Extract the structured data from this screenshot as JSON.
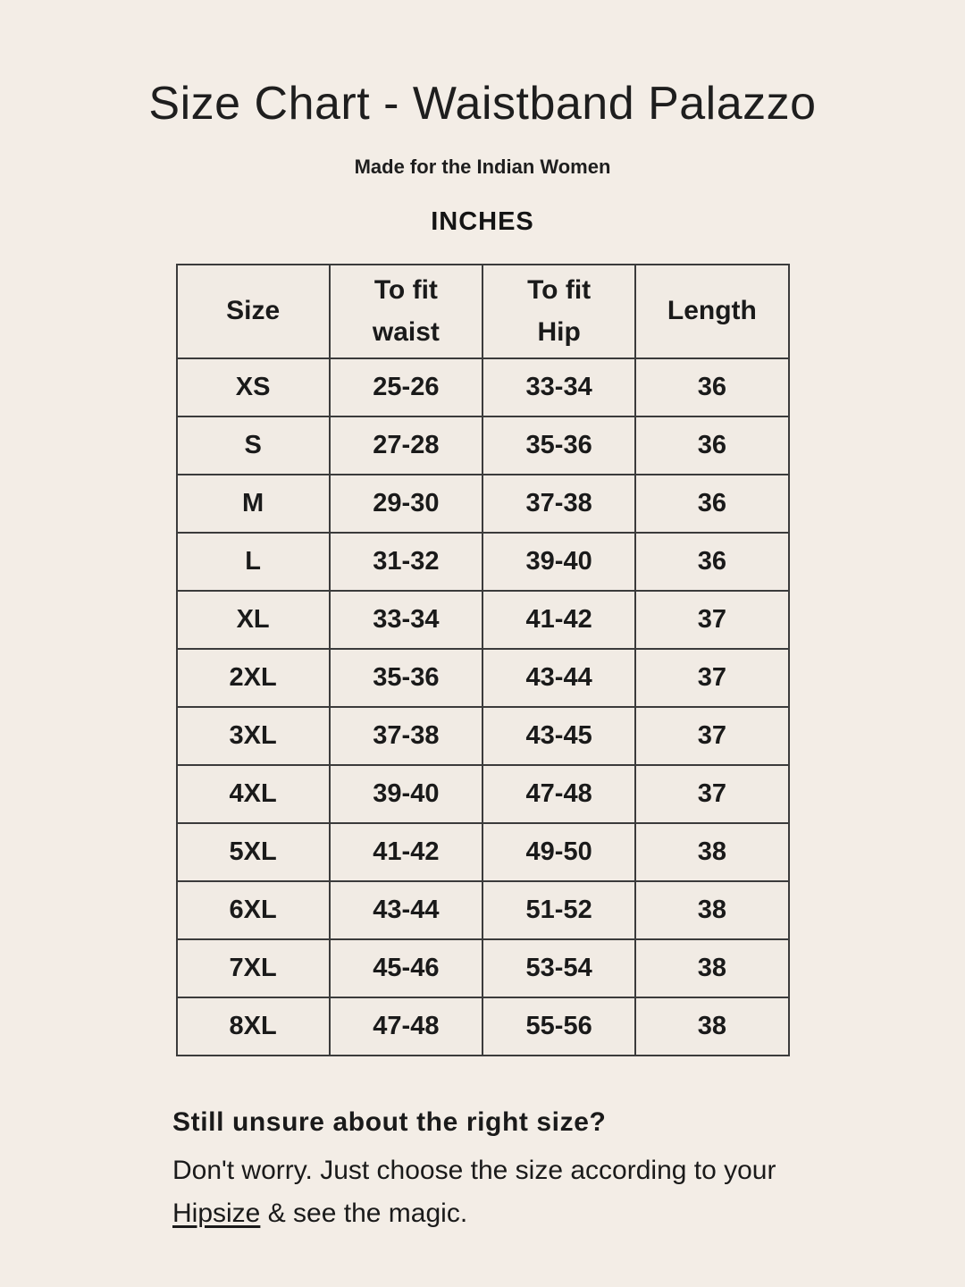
{
  "page": {
    "title": "Size Chart - Waistband Palazzo",
    "subtitle": "Made for the Indian Women",
    "unit_label": "INCHES"
  },
  "table": {
    "columns": [
      "Size",
      "To fit waist",
      "To fit Hip",
      "Length"
    ],
    "rows": [
      {
        "size": "XS",
        "waist": "25-26",
        "hip": "33-34",
        "length": "36"
      },
      {
        "size": "S",
        "waist": "27-28",
        "hip": "35-36",
        "length": "36"
      },
      {
        "size": "M",
        "waist": "29-30",
        "hip": "37-38",
        "length": "36"
      },
      {
        "size": "L",
        "waist": "31-32",
        "hip": "39-40",
        "length": "36"
      },
      {
        "size": "XL",
        "waist": "33-34",
        "hip": "41-42",
        "length": "37"
      },
      {
        "size": "2XL",
        "waist": "35-36",
        "hip": "43-44",
        "length": "37"
      },
      {
        "size": "3XL",
        "waist": "37-38",
        "hip": "43-45",
        "length": "37"
      },
      {
        "size": "4XL",
        "waist": "39-40",
        "hip": "47-48",
        "length": "37"
      },
      {
        "size": "5XL",
        "waist": "41-42",
        "hip": "49-50",
        "length": "38"
      },
      {
        "size": "6XL",
        "waist": "43-44",
        "hip": "51-52",
        "length": "38"
      },
      {
        "size": "7XL",
        "waist": "45-46",
        "hip": "53-54",
        "length": "38"
      },
      {
        "size": "8XL",
        "waist": "47-48",
        "hip": "55-56",
        "length": "38"
      }
    ]
  },
  "footer": {
    "heading": "Still unsure about the right size?",
    "line1": "Don't worry. Just choose the size according to your",
    "link_text": "Hipsize",
    "line2_rest": " & see the magic."
  },
  "colors": {
    "page_background": "#F3EDE6",
    "table_cell_background": "#F1EBE4",
    "table_border": "#3B3B3B",
    "text": "#1A1A1A"
  }
}
